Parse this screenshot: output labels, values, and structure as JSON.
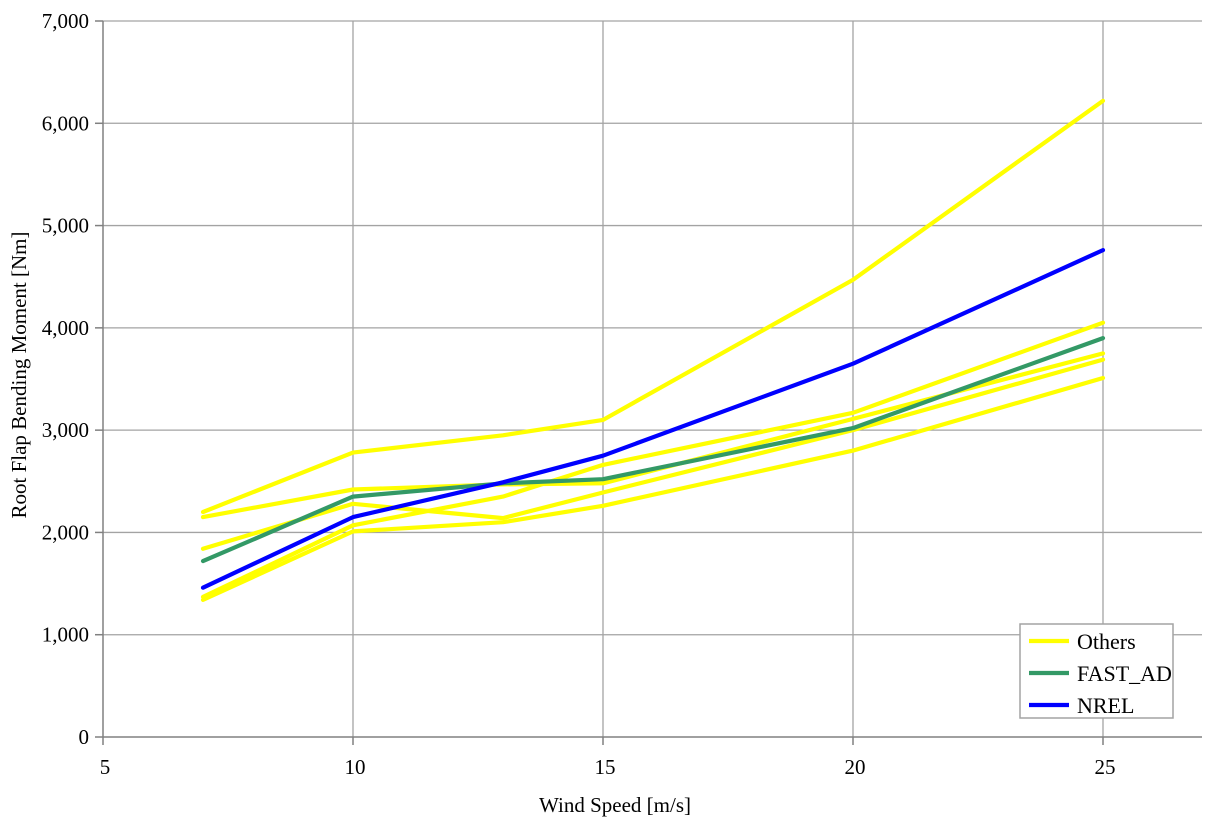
{
  "chart_data": {
    "type": "line",
    "title": "",
    "xlabel": "Wind Speed [m/s]",
    "ylabel": "Root Flap Bending Moment [Nm]",
    "x": [
      7,
      10,
      13,
      15,
      20,
      25
    ],
    "series": [
      {
        "name": "Others",
        "color": "#FFFF00",
        "values": [
          2200,
          2780,
          2950,
          3100,
          4470,
          6220
        ]
      },
      {
        "name": "Others",
        "color": "#FFFF00",
        "values": [
          1370,
          2070,
          2350,
          2660,
          3170,
          4050
        ]
      },
      {
        "name": "Others",
        "color": "#FFFF00",
        "values": [
          2150,
          2420,
          2470,
          2480,
          3110,
          3750
        ]
      },
      {
        "name": "Others",
        "color": "#FFFF00",
        "values": [
          1840,
          2280,
          2140,
          2390,
          3000,
          3690
        ]
      },
      {
        "name": "Others",
        "color": "#FFFF00",
        "values": [
          1340,
          2010,
          2100,
          2260,
          2800,
          3510
        ]
      },
      {
        "name": "FAST_AD",
        "color": "#339966",
        "values": [
          1720,
          2350,
          2480,
          2520,
          3020,
          3900
        ]
      },
      {
        "name": "NREL",
        "color": "#0000FF",
        "values": [
          1460,
          2150,
          2490,
          2750,
          3650,
          4760
        ]
      }
    ],
    "xlim": [
      5,
      26.98
    ],
    "ylim": [
      0,
      7000
    ],
    "x_ticks": [
      5,
      10,
      15,
      20,
      25
    ],
    "x_tick_labels": [
      "5",
      "10",
      "15",
      "20",
      "25"
    ],
    "y_ticks": [
      0,
      1000,
      2000,
      3000,
      4000,
      5000,
      6000,
      7000
    ],
    "y_tick_labels": [
      "0",
      "1,000",
      "2,000",
      "3,000",
      "4,000",
      "5,000",
      "6,000",
      "7,000"
    ],
    "grid": true,
    "legend_position": "bottom-right",
    "legend": [
      {
        "label": "Others",
        "color": "#FFFF00"
      },
      {
        "label": "FAST_AD",
        "color": "#339966"
      },
      {
        "label": "NREL",
        "color": "#0000FF"
      }
    ],
    "colors": {
      "gridline": "#a3a3a3",
      "axis": "#808080",
      "legend_border": "#a3a3a3",
      "text": "#000000"
    }
  }
}
